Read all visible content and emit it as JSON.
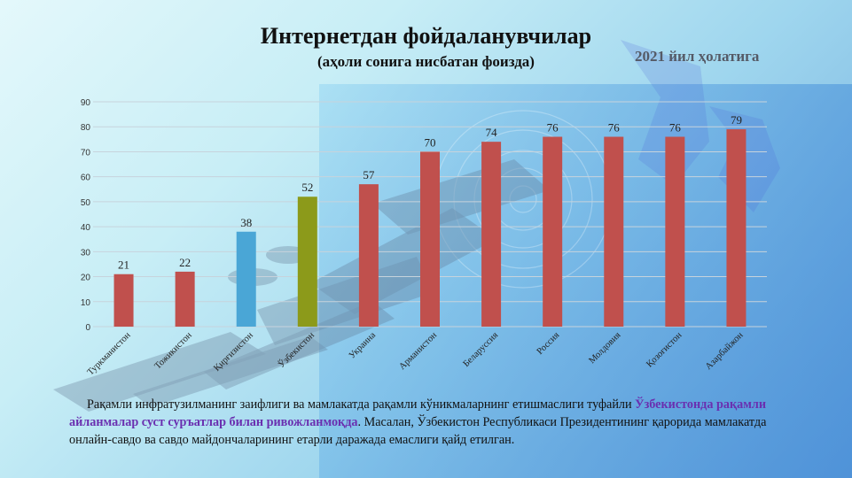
{
  "title": "Интернетдан фойдаланувчилар",
  "subtitle": "(аҳоли сонига нисбатан фоизда)",
  "date_label": "2021 йил ҳолатига",
  "caption": {
    "part1": "Рақамли инфратузилманинг заифлиги ва мамлакатда рақамли кўникмаларнинг етишмаслиги туфайли ",
    "highlight": "Ўзбекистонда рақамли айланмалар суст суръатлар билан ривожланмоқда",
    "part2": ". Масалан, Ўзбекистон Республикаси Президентининг қарорида мамлакатда онлайн-савдо ва савдо майдончаларининг етарли даражада емаслиги қайд етилган."
  },
  "colors": {
    "default_bar": "#c0504d",
    "kyrgyzstan_bar": "#4aa6d6",
    "uzbekistan_bar": "#8c9a1a",
    "gridline": "#c7d3dc"
  },
  "chart_data": {
    "type": "bar",
    "categories": [
      "Туркманистон",
      "Тожикистон",
      "Қирғизистон",
      "Ўзбекистон",
      "Украина",
      "Арманистон",
      "Беларуссия",
      "Россия",
      "Молдовия",
      "Қозоғистон",
      "Азарбайжон"
    ],
    "values": [
      21,
      22,
      38,
      52,
      57,
      70,
      74,
      76,
      76,
      76,
      79
    ],
    "bar_colors": [
      "#c0504d",
      "#c0504d",
      "#4aa6d6",
      "#8c9a1a",
      "#c0504d",
      "#c0504d",
      "#c0504d",
      "#c0504d",
      "#c0504d",
      "#c0504d",
      "#c0504d"
    ],
    "ylim": [
      0,
      90
    ],
    "yticks": [
      0,
      10,
      20,
      30,
      40,
      50,
      60,
      70,
      80,
      90
    ],
    "grid": true,
    "legend": false,
    "data_labels": true
  }
}
